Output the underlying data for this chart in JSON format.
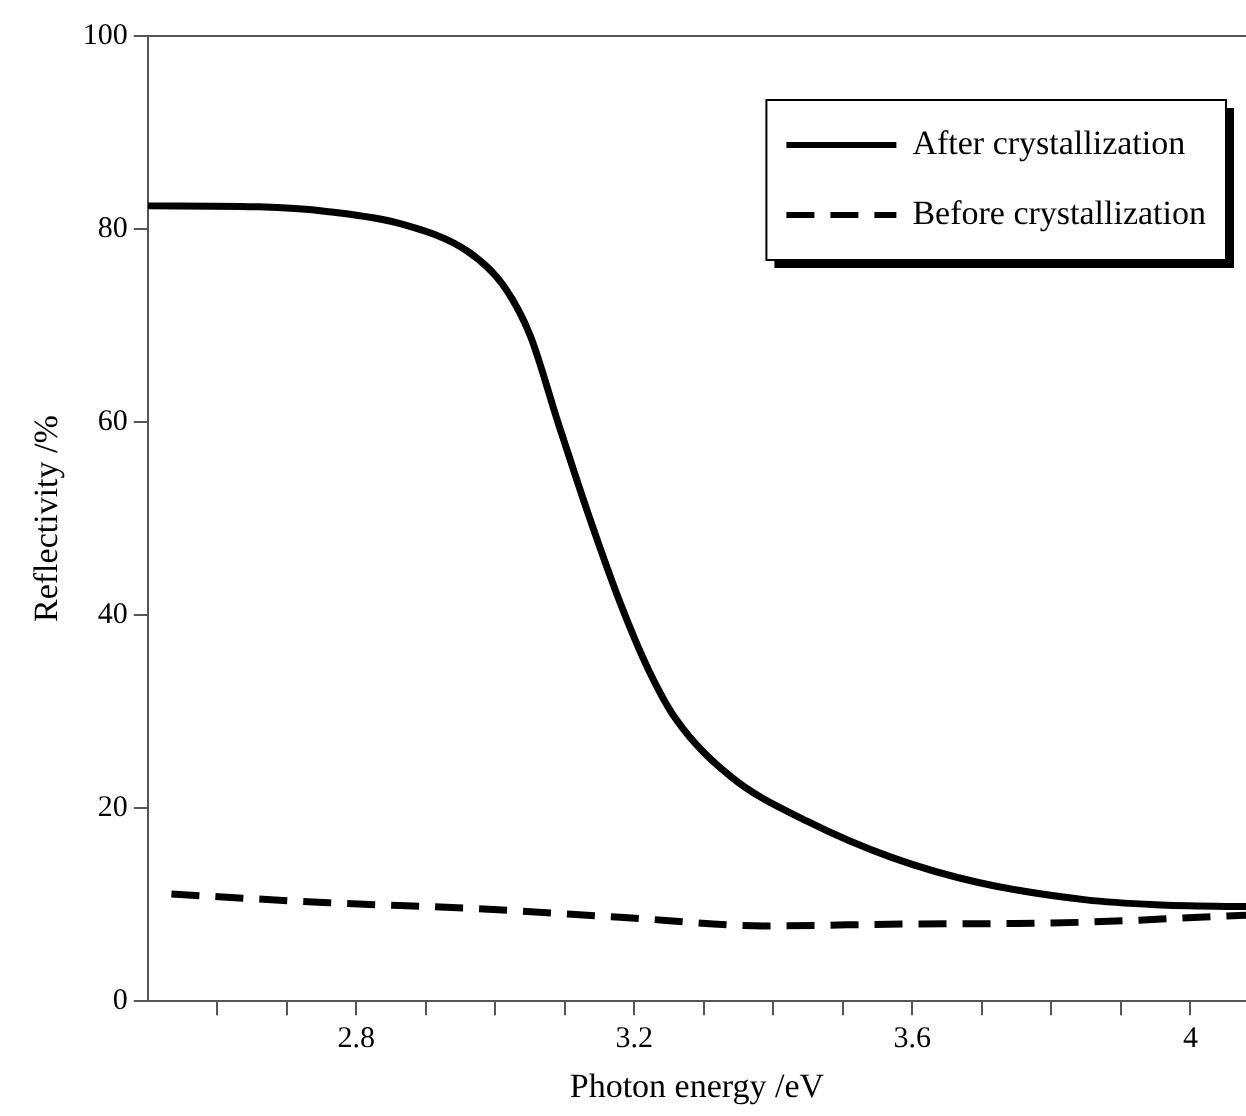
{
  "chart_data": {
    "type": "line",
    "xlabel": "Photon energy /eV",
    "ylabel": "Reflectivity /%",
    "xlim": [
      2.5,
      4.08
    ],
    "ylim": [
      0,
      100
    ],
    "xticks": [
      {
        "value": 2.6,
        "label": null
      },
      {
        "value": 2.7,
        "label": null
      },
      2.8,
      {
        "value": 2.9,
        "label": null
      },
      {
        "value": 3.0,
        "label": null
      },
      {
        "value": 3.1,
        "label": null
      },
      3.2,
      {
        "value": 3.3,
        "label": null
      },
      {
        "value": 3.4,
        "label": null
      },
      {
        "value": 3.5,
        "label": null
      },
      3.6,
      {
        "value": 3.7,
        "label": null
      },
      {
        "value": 3.8,
        "label": null
      },
      {
        "value": 3.9,
        "label": null
      },
      4
    ],
    "yticks": [
      0,
      20,
      40,
      60,
      80,
      100
    ],
    "grid": false,
    "legend": "top right",
    "marker": "none",
    "series": [
      {
        "name": "After crystallization",
        "color": "#000000",
        "line_style": "solid",
        "x": [
          2.5,
          2.66,
          2.76,
          2.866,
          2.96,
          3.01,
          3.05,
          3.09,
          3.135,
          3.18,
          3.22,
          3.26,
          3.34,
          3.45,
          3.57,
          3.695,
          3.85,
          3.95,
          4.08
        ],
        "values": [
          82.4,
          82.3,
          81.8,
          80.5,
          77.7,
          74.3,
          69.0,
          60.0,
          50.2,
          41.2,
          34.4,
          29.2,
          23.2,
          18.6,
          14.9,
          12.3,
          10.5,
          10.0,
          9.8
        ]
      },
      {
        "name": "Before crystallization",
        "color": "#000000",
        "line_style": "dashed",
        "x": [
          2.534,
          2.76,
          2.97,
          3.18,
          3.39,
          3.59,
          3.8,
          4.08
        ],
        "values": [
          11.1,
          10.2,
          9.6,
          8.7,
          7.8,
          8.0,
          8.1,
          8.9
        ]
      }
    ]
  }
}
